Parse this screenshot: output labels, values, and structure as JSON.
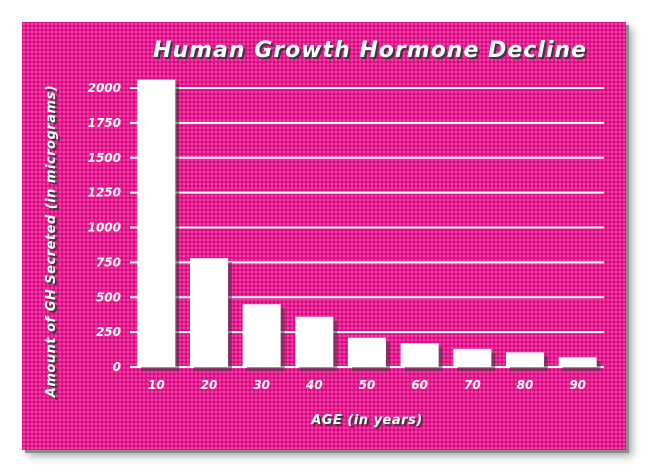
{
  "chart_data": {
    "type": "bar",
    "title": "Human Growth Hormone Decline",
    "xlabel": "AGE (in years)",
    "ylabel": "Amount of GH Secreted (in micrograms)",
    "categories": [
      "10",
      "20",
      "30",
      "40",
      "50",
      "60",
      "70",
      "80",
      "90"
    ],
    "values": [
      2060,
      780,
      450,
      360,
      210,
      170,
      130,
      105,
      70
    ],
    "yticks": [
      "0",
      "250",
      "500",
      "750",
      "1000",
      "1250",
      "1500",
      "1750",
      "2000"
    ],
    "ylim": [
      0,
      2000
    ],
    "grid": true,
    "colors": {
      "background": "#ea1590",
      "bars": "#ffffff",
      "gridlines": "#ffffff",
      "text": "#ffffff"
    }
  }
}
